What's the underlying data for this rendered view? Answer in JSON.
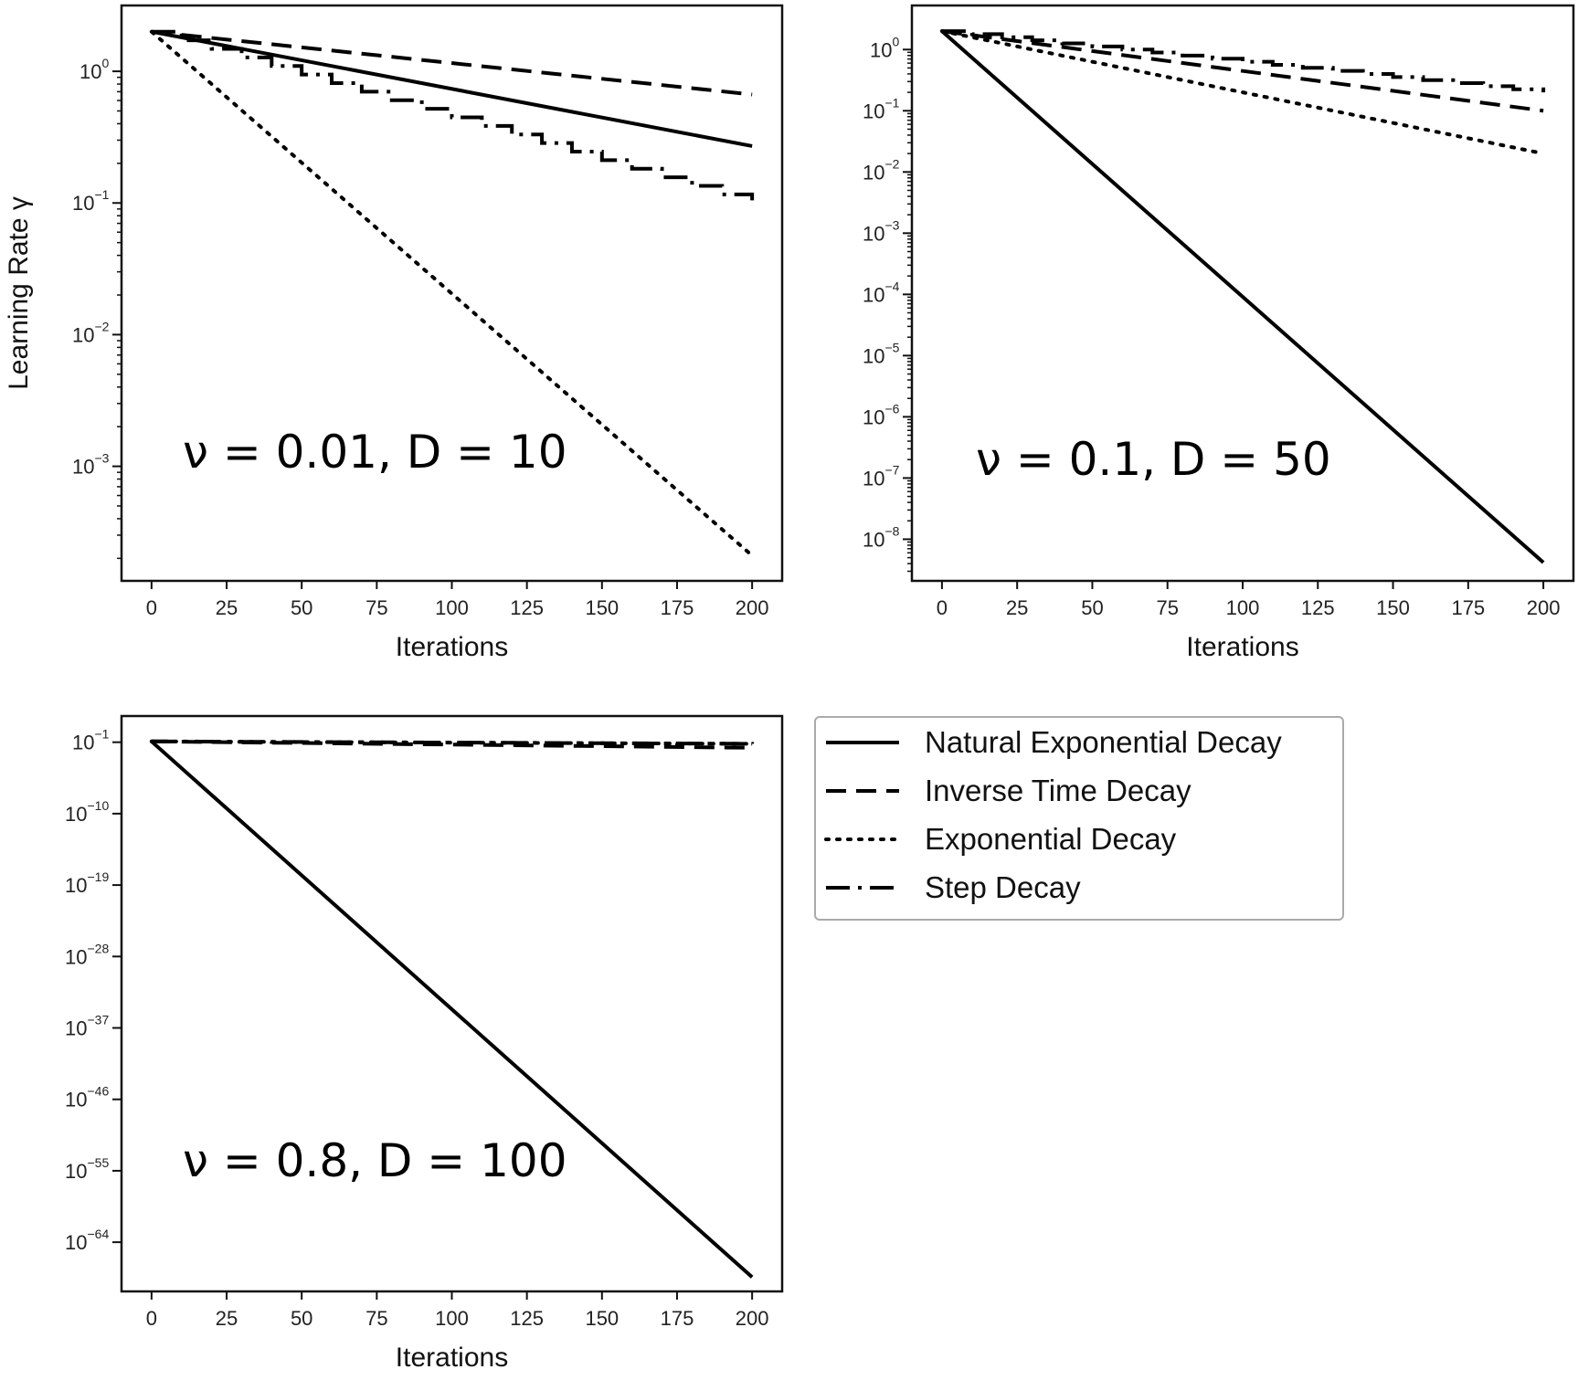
{
  "chart_data": [
    {
      "type": "line",
      "xlabel": "Iterations",
      "ylabel": "Learning Rate γ",
      "annotation": "ν = 0.01, D = 10",
      "xlim": [
        -10,
        210
      ],
      "xticks": [
        0,
        25,
        50,
        75,
        100,
        125,
        150,
        175,
        200
      ],
      "y_scale": "log",
      "ylim": [
        -3.87,
        0.5
      ],
      "yticks": [
        {
          "base": "10",
          "exp": "0",
          "value": 0
        },
        {
          "base": "10",
          "exp": "−1",
          "value": -1
        },
        {
          "base": "10",
          "exp": "−2",
          "value": -2
        },
        {
          "base": "10",
          "exp": "−3",
          "value": -3
        }
      ],
      "series": [
        {
          "name": "Natural Exponential Decay",
          "style": "solid",
          "y_log10_start": 0.301,
          "y_log10_end": -0.568,
          "steps": null
        },
        {
          "name": "Inverse Time Decay",
          "style": "dashed",
          "y_log10_start": 0.301,
          "y_log10_end": -0.176,
          "steps": null
        },
        {
          "name": "Exponential Decay",
          "style": "dotted",
          "y_log10_start": 0.301,
          "y_log10_end": -3.678,
          "steps": null
        },
        {
          "name": "Step Decay",
          "style": "dashdot",
          "y_log10_start": 0.301,
          "y_log10_end": -1.0,
          "steps": 10
        }
      ]
    },
    {
      "type": "line",
      "xlabel": "Iterations",
      "ylabel": "",
      "annotation": "ν = 0.1, D = 50",
      "xlim": [
        -10,
        210
      ],
      "xticks": [
        0,
        25,
        50,
        75,
        100,
        125,
        150,
        175,
        200
      ],
      "y_scale": "log",
      "ylim": [
        -8.68,
        0.72
      ],
      "yticks": [
        {
          "base": "10",
          "exp": "0",
          "value": 0
        },
        {
          "base": "10",
          "exp": "−1",
          "value": -1
        },
        {
          "base": "10",
          "exp": "−2",
          "value": -2
        },
        {
          "base": "10",
          "exp": "−3",
          "value": -3
        },
        {
          "base": "10",
          "exp": "−4",
          "value": -4
        },
        {
          "base": "10",
          "exp": "−5",
          "value": -5
        },
        {
          "base": "10",
          "exp": "−6",
          "value": -6
        },
        {
          "base": "10",
          "exp": "−7",
          "value": -7
        },
        {
          "base": "10",
          "exp": "−8",
          "value": -8
        }
      ],
      "series": [
        {
          "name": "Natural Exponential Decay",
          "style": "solid",
          "y_log10_start": 0.301,
          "y_log10_end": -8.38,
          "steps": null
        },
        {
          "name": "Inverse Time Decay",
          "style": "dashed",
          "y_log10_start": 0.301,
          "y_log10_end": -1.0,
          "steps": null
        },
        {
          "name": "Exponential Decay",
          "style": "dotted",
          "y_log10_start": 0.301,
          "y_log10_end": -1.699,
          "steps": null
        },
        {
          "name": "Step Decay",
          "style": "dashdot",
          "y_log10_start": 0.301,
          "y_log10_end": -0.699,
          "steps": 10
        }
      ]
    },
    {
      "type": "line",
      "xlabel": "Iterations",
      "ylabel": "",
      "annotation": "ν = 0.8, D = 100",
      "xlim": [
        -10,
        210
      ],
      "xticks": [
        0,
        25,
        50,
        75,
        100,
        125,
        150,
        175,
        200
      ],
      "y_scale": "log",
      "ylim": [
        -70.2,
        2.3
      ],
      "yticks": [
        {
          "base": "10",
          "exp": "−1",
          "value": -1
        },
        {
          "base": "10",
          "exp": "−10",
          "value": -10
        },
        {
          "base": "10",
          "exp": "−19",
          "value": -19
        },
        {
          "base": "10",
          "exp": "−28",
          "value": -28
        },
        {
          "base": "10",
          "exp": "−37",
          "value": -37
        },
        {
          "base": "10",
          "exp": "−46",
          "value": -46
        },
        {
          "base": "10",
          "exp": "−55",
          "value": -55
        },
        {
          "base": "10",
          "exp": "−64",
          "value": -64
        }
      ],
      "series": [
        {
          "name": "Natural Exponential Decay",
          "style": "solid",
          "y_log10_start": -0.9,
          "y_log10_end": -68.4,
          "steps": null
        },
        {
          "name": "Inverse Time Decay",
          "style": "dashed",
          "y_log10_start": -0.9,
          "y_log10_end": -1.7,
          "steps": null
        },
        {
          "name": "Exponential Decay",
          "style": "dotted",
          "y_log10_start": -0.9,
          "y_log10_end": -1.2,
          "steps": null
        },
        {
          "name": "Step Decay",
          "style": "dashdot",
          "y_log10_start": -0.9,
          "y_log10_end": -1.2,
          "steps": 5
        }
      ]
    }
  ],
  "legend": {
    "placement": "right of bottom-left panel",
    "entries": [
      {
        "label": "Natural Exponential Decay",
        "style": "solid"
      },
      {
        "label": "Inverse Time Decay",
        "style": "dashed"
      },
      {
        "label": "Exponential Decay",
        "style": "dotted"
      },
      {
        "label": "Step Decay",
        "style": "dashdot"
      }
    ]
  },
  "colors": {
    "lines": "#000000",
    "frame": "#111111",
    "legend_border": "#aaaaaa"
  }
}
